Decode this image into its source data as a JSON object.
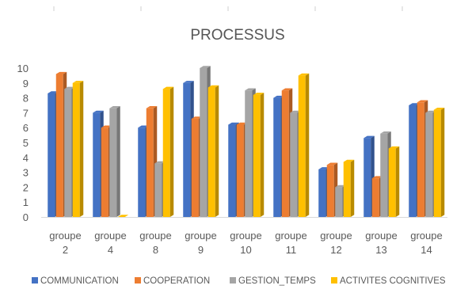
{
  "chart_data": {
    "type": "bar",
    "title": "PROCESSUS",
    "xlabel": "",
    "ylabel": "",
    "ylim": [
      0,
      10
    ],
    "yticks": [
      "0",
      "1",
      "2",
      "3",
      "4",
      "5",
      "6",
      "7",
      "8",
      "9",
      "10"
    ],
    "grid": false,
    "legend_position": "bottom",
    "categories": [
      [
        "groupe",
        "2"
      ],
      [
        "groupe",
        "4"
      ],
      [
        "groupe",
        "8"
      ],
      [
        "groupe",
        "9"
      ],
      [
        "groupe",
        "10"
      ],
      [
        "groupe",
        "11"
      ],
      [
        "groupe",
        "12"
      ],
      [
        "groupe",
        "13"
      ],
      [
        "groupe",
        "14"
      ]
    ],
    "series": [
      {
        "name": "COMMUNICATION",
        "color": "#4472C4",
        "values": [
          8.3,
          7.0,
          6.0,
          9.0,
          6.2,
          8.0,
          3.2,
          5.3,
          7.5
        ]
      },
      {
        "name": "COOPERATION",
        "color": "#ED7D31",
        "values": [
          9.6,
          6.0,
          7.3,
          6.6,
          6.2,
          8.5,
          3.5,
          2.6,
          7.7
        ]
      },
      {
        "name": "GESTION_TEMPS",
        "color": "#A5A5A5",
        "values": [
          8.6,
          7.3,
          3.6,
          10.0,
          8.5,
          7.0,
          2.0,
          5.6,
          7.0
        ]
      },
      {
        "name": "ACTIVITES COGNITIVES",
        "color": "#FFC000",
        "values": [
          9.0,
          0.0,
          8.6,
          8.7,
          8.2,
          9.5,
          3.7,
          4.6,
          7.2
        ]
      }
    ]
  }
}
